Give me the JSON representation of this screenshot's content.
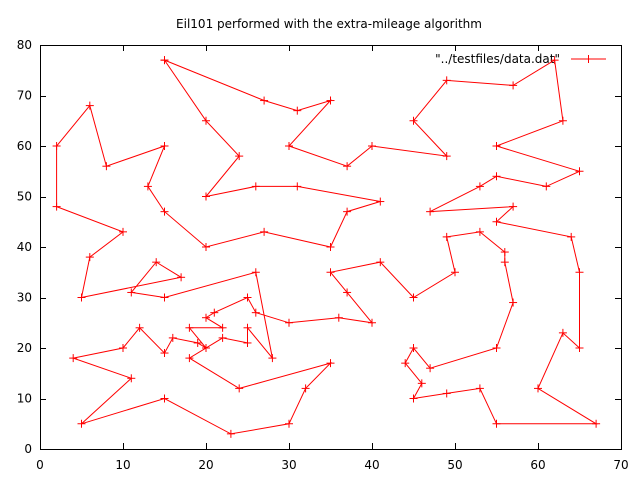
{
  "chart_data": {
    "type": "line",
    "title": "Eil101 performed with the extra-mileage algorithm",
    "xlabel": "",
    "ylabel": "",
    "xlim": [
      0,
      70
    ],
    "ylim": [
      0,
      80
    ],
    "xticks": [
      "0",
      "10",
      "20",
      "30",
      "40",
      "50",
      "60",
      "70"
    ],
    "yticks": [
      "0",
      "10",
      "20",
      "30",
      "40",
      "50",
      "60",
      "70",
      "80"
    ],
    "grid": false,
    "legend_position": "top-right",
    "color": "#ff0000",
    "series": [
      {
        "name": "\"../testfiles/data.dat\"",
        "points": [
          [
            15,
            77
          ],
          [
            27,
            69
          ],
          [
            31,
            67
          ],
          [
            35,
            69
          ],
          [
            30,
            60
          ],
          [
            37,
            56
          ],
          [
            40,
            60
          ],
          [
            49,
            58
          ],
          [
            45,
            65
          ],
          [
            49,
            73
          ],
          [
            57,
            72
          ],
          [
            62,
            77
          ],
          [
            63,
            65
          ],
          [
            55,
            60
          ],
          [
            65,
            55
          ],
          [
            61,
            52
          ],
          [
            55,
            54
          ],
          [
            53,
            52
          ],
          [
            47,
            47
          ],
          [
            57,
            48
          ],
          [
            55,
            45
          ],
          [
            64,
            42
          ],
          [
            65,
            35
          ],
          [
            65,
            20
          ],
          [
            63,
            23
          ],
          [
            60,
            12
          ],
          [
            67,
            5
          ],
          [
            55,
            5
          ],
          [
            53,
            12
          ],
          [
            49,
            11
          ],
          [
            45,
            10
          ],
          [
            46,
            13
          ],
          [
            44,
            17
          ],
          [
            45,
            20
          ],
          [
            47,
            16
          ],
          [
            55,
            20
          ],
          [
            57,
            29
          ],
          [
            56,
            37
          ],
          [
            56,
            39
          ],
          [
            53,
            43
          ],
          [
            49,
            42
          ],
          [
            50,
            35
          ],
          [
            45,
            30
          ],
          [
            41,
            37
          ],
          [
            35,
            35
          ],
          [
            37,
            31
          ],
          [
            40,
            25
          ],
          [
            36,
            26
          ],
          [
            30,
            25
          ],
          [
            26,
            27
          ],
          [
            25,
            30
          ],
          [
            21,
            27
          ],
          [
            20,
            26
          ],
          [
            22,
            24
          ],
          [
            18,
            24
          ],
          [
            20,
            20
          ],
          [
            19,
            21
          ],
          [
            16,
            22
          ],
          [
            15,
            19
          ],
          [
            12,
            24
          ],
          [
            10,
            20
          ],
          [
            4,
            18
          ],
          [
            11,
            14
          ],
          [
            5,
            5
          ],
          [
            15,
            10
          ],
          [
            23,
            3
          ],
          [
            30,
            5
          ],
          [
            32,
            12
          ],
          [
            35,
            17
          ],
          [
            24,
            12
          ],
          [
            18,
            18
          ],
          [
            22,
            22
          ],
          [
            25,
            21
          ],
          [
            25,
            24
          ],
          [
            28,
            18
          ],
          [
            26,
            35
          ],
          [
            15,
            30
          ],
          [
            11,
            31
          ],
          [
            14,
            37
          ],
          [
            17,
            34
          ],
          [
            5,
            30
          ],
          [
            6,
            38
          ],
          [
            10,
            43
          ],
          [
            2,
            48
          ],
          [
            2,
            60
          ],
          [
            6,
            68
          ],
          [
            8,
            56
          ],
          [
            15,
            60
          ],
          [
            13,
            52
          ],
          [
            15,
            47
          ],
          [
            20,
            40
          ],
          [
            27,
            43
          ],
          [
            35,
            40
          ],
          [
            37,
            47
          ],
          [
            41,
            49
          ],
          [
            31,
            52
          ],
          [
            26,
            52
          ],
          [
            20,
            50
          ],
          [
            24,
            58
          ],
          [
            20,
            65
          ],
          [
            15,
            77
          ]
        ]
      }
    ]
  }
}
